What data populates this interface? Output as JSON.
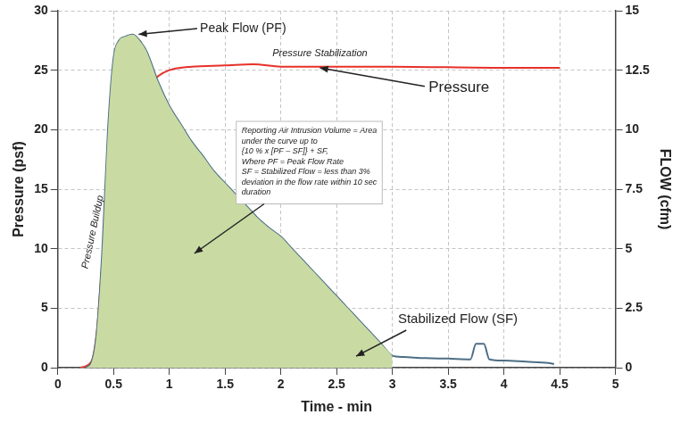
{
  "chart_data": {
    "type": "line",
    "xlabel": "Time - min",
    "ylabel": "Pressure (psf)",
    "y2label": "FLOW (cfm)",
    "xlim": [
      0,
      5
    ],
    "xticks": [
      0,
      0.5,
      1,
      1.5,
      2,
      2.5,
      3,
      3.5,
      4,
      4.5,
      5
    ],
    "ylim": [
      0,
      30
    ],
    "yticks": [
      0,
      5,
      10,
      15,
      20,
      25,
      30
    ],
    "y2lim": [
      0,
      15
    ],
    "y2ticks": [
      0,
      2.5,
      5,
      7.5,
      10,
      12.5,
      15
    ],
    "grid": true,
    "series": [
      {
        "type": "area",
        "color": "#c9dba3",
        "axis": "y2",
        "x": [
          0.25,
          0.3,
          0.35,
          0.4,
          0.45,
          0.5,
          0.55,
          0.6,
          0.67,
          0.75,
          0.8,
          0.9,
          1.0,
          1.1,
          1.2,
          1.3,
          1.4,
          1.5,
          1.6,
          1.7,
          1.8,
          1.9,
          2.0,
          2.1,
          2.2,
          2.3,
          2.4,
          2.5,
          2.6,
          2.7,
          2.8,
          2.9,
          3.0
        ],
        "values": [
          0,
          0.2,
          1.5,
          5,
          10,
          13,
          13.75,
          13.9,
          14,
          13.65,
          13.25,
          12,
          11,
          10.25,
          9.5,
          8.9,
          8.25,
          7.75,
          7.25,
          6.75,
          6.25,
          5.85,
          5.5,
          5,
          4.5,
          4,
          3.5,
          3,
          2.5,
          2,
          1.5,
          1,
          0.5
        ]
      },
      {
        "type": "line",
        "color": "#4d6e86",
        "axis": "y2",
        "x": [
          0.25,
          0.3,
          0.35,
          0.4,
          0.45,
          0.5,
          0.55,
          0.6,
          0.67,
          0.75,
          0.8,
          0.9,
          1.0,
          1.1,
          1.2,
          1.3,
          1.4,
          1.5,
          1.6,
          1.7,
          1.8,
          1.9,
          2.0,
          2.1,
          2.2,
          2.3,
          2.4,
          2.5,
          2.6,
          2.7,
          2.8,
          2.9,
          3.0,
          3.1,
          3.3,
          3.5,
          3.7,
          3.75,
          3.82,
          3.87,
          4.0,
          4.2,
          4.4,
          4.45
        ],
        "values": [
          0,
          0.2,
          1.5,
          5,
          10,
          13,
          13.75,
          13.9,
          14,
          13.65,
          13.25,
          12,
          11,
          10.25,
          9.5,
          8.9,
          8.25,
          7.75,
          7.25,
          6.75,
          6.25,
          5.85,
          5.5,
          5,
          4.5,
          4,
          3.5,
          3,
          2.5,
          2,
          1.5,
          1,
          0.5,
          0.45,
          0.4,
          0.38,
          0.35,
          1.0,
          1.0,
          0.35,
          0.3,
          0.25,
          0.2,
          0.15
        ]
      },
      {
        "name": "Pressure",
        "type": "line",
        "color": "#e8302a",
        "x": [
          0.2,
          0.3,
          0.35,
          0.4,
          0.45,
          0.5,
          0.6,
          0.7,
          0.8,
          0.9,
          1.0,
          1.2,
          1.5,
          1.75,
          2.0,
          3.0,
          4.0,
          4.5
        ],
        "values": [
          0,
          0.5,
          3,
          9,
          13,
          16,
          19.5,
          22,
          23.5,
          24.5,
          25,
          25.3,
          25.4,
          25.5,
          25.3,
          25.3,
          25.2,
          25.2
        ]
      }
    ],
    "annotations": [
      "Peak Flow (PF)",
      "Pressure Stabilization",
      "Pressure",
      "Pressure Buildup",
      "Stabilized Flow (SF)",
      [
        "Reporting Air Intrusion Volume = Area",
        "under the curve up to",
        "{10 % x [PF – SF]} + SF,",
        "Where PF = Peak Flow Rate",
        "SF = Stabilized Flow = less than 3%",
        "deviation in the flow rate within 10 sec",
        "duration"
      ]
    ]
  }
}
